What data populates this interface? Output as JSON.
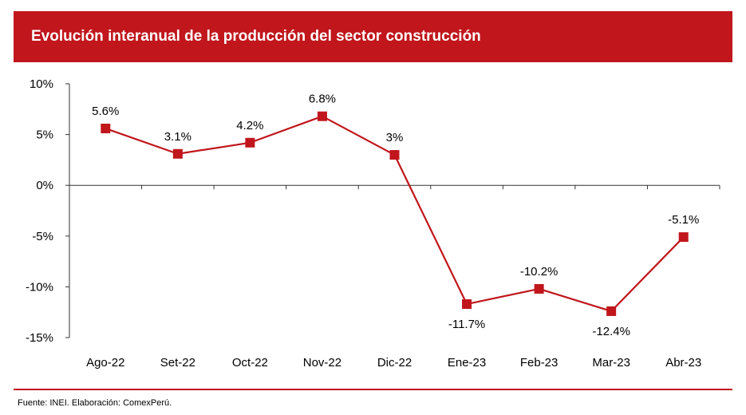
{
  "title": "Evolución interanual de la producción del sector construcción",
  "source": "Fuente: INEI. Elaboración: ComexPerú.",
  "colors": {
    "accent": "#c0161c",
    "line": "#c0161c",
    "marker": "#c0161c",
    "axis": "#333333"
  },
  "chart_data": {
    "type": "line",
    "categories": [
      "Ago-22",
      "Set-22",
      "Oct-22",
      "Nov-22",
      "Dic-22",
      "Ene-23",
      "Feb-23",
      "Mar-23",
      "Abr-23"
    ],
    "values": [
      5.6,
      3.1,
      4.2,
      6.8,
      3.0,
      -11.7,
      -10.2,
      -12.4,
      -5.1
    ],
    "data_labels": [
      "5.6%",
      "3.1%",
      "4.2%",
      "6.8%",
      "3%",
      "-11.7%",
      "-10.2%",
      "-12.4%",
      "-5.1%"
    ],
    "label_position": [
      "above",
      "above",
      "above",
      "above",
      "above",
      "below",
      "above",
      "below",
      "above"
    ],
    "yticks": [
      10,
      5,
      0,
      -5,
      -10,
      -15
    ],
    "ytick_labels": [
      "10%",
      "5%",
      "0%",
      "-5%",
      "-10%",
      "-15%"
    ],
    "ylim": [
      -15,
      10
    ],
    "marker": "square",
    "legend": "none",
    "grid": false
  }
}
